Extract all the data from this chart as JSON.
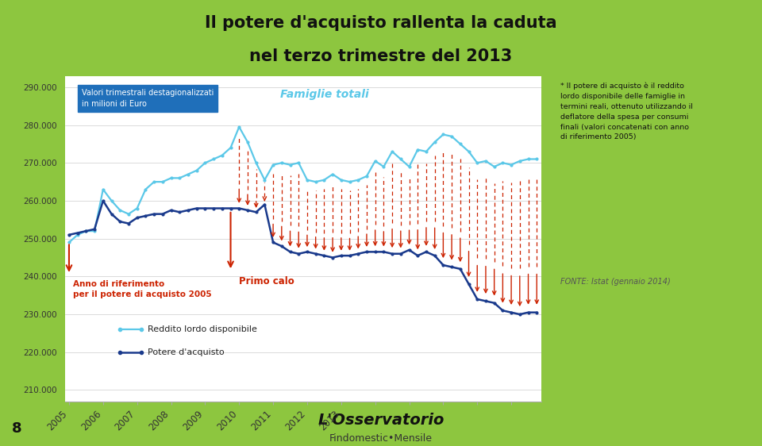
{
  "title_line1": "Il potere d'acquisto rallenta la caduta",
  "title_line2": "nel terzo trimestre del 2013",
  "bg_color": "#8dc63f",
  "chart_bg": "#ffffff",
  "note_text": "* Il potere di acquisto è il reddito\nlordo disponibile delle famiglie in\ntermini reali, ottenuto utilizzando il\ndeflatore della spesa per consumi\nfinali (valori concatenati con anno\ndi riferimento 2005)",
  "fonte_text": "FONTE: Istat (gennaio 2014)",
  "famiglie_label": "Famiglie totali",
  "box_label": "Valori trimestrali destagionalizzati\nin milioni di Euro",
  "anno_ref_label": "Anno di riferimento\nper il potere di acquisto 2005",
  "primo_calo_label": "Primo calo",
  "legend_line1": "Reddito lordo disponibile",
  "legend_line2": "Potere d'acquisto",
  "reddito_color": "#5bc8e8",
  "potere_color": "#1a3a8c",
  "arrow_color": "#cc2200",
  "ylabel_values": [
    210000,
    220000,
    230000,
    240000,
    250000,
    260000,
    270000,
    280000,
    290000
  ],
  "ylim": [
    207000,
    293000
  ],
  "reddito_data": [
    249000,
    251000,
    252000,
    252000,
    263000,
    260000,
    257500,
    256500,
    258000,
    263000,
    265000,
    265000,
    266000,
    266000,
    267000,
    268000,
    270000,
    271000,
    272000,
    274000,
    279500,
    275500,
    270000,
    265500,
    269500,
    270000,
    269500,
    270000,
    265500,
    265000,
    265500,
    267000,
    265500,
    265000,
    265500,
    266500,
    270500,
    269000,
    273000,
    271000,
    269000,
    273500,
    273000,
    275500,
    277500,
    277000,
    275000,
    273000,
    270000,
    270500,
    269000,
    270000,
    269500,
    270500,
    271000,
    271000
  ],
  "potere_data": [
    251000,
    251500,
    252000,
    252500,
    260000,
    256500,
    254500,
    254000,
    255500,
    256000,
    256500,
    256500,
    257500,
    257000,
    257500,
    258000,
    258000,
    258000,
    258000,
    258000,
    258000,
    257500,
    257000,
    259000,
    249000,
    248000,
    246500,
    246000,
    246500,
    246000,
    245500,
    245000,
    245500,
    245500,
    246000,
    246500,
    246500,
    246500,
    246000,
    246000,
    247000,
    245500,
    246500,
    245500,
    243000,
    242500,
    242000,
    238000,
    234000,
    233500,
    233000,
    231000,
    230500,
    230000,
    230500,
    230500
  ],
  "n_quarters": 56,
  "x_tick_positions": [
    0,
    4,
    8,
    12,
    16,
    20,
    24,
    28,
    32,
    36,
    40,
    44,
    48,
    52
  ],
  "x_tick_labels": [
    "2005",
    "2006",
    "2007",
    "2008",
    "2009",
    "2010",
    "2011",
    "2012",
    "2013",
    "",
    "",
    "",
    "",
    ""
  ],
  "diff_arrows_x": [
    20,
    21,
    22,
    23,
    24,
    25,
    26,
    27,
    28,
    29,
    30,
    31,
    32,
    33,
    34,
    35,
    36,
    37,
    38,
    39,
    40,
    41,
    42,
    43,
    44,
    45,
    46,
    47,
    48,
    49,
    50,
    51,
    52,
    53,
    54,
    55
  ],
  "page_number": "8"
}
